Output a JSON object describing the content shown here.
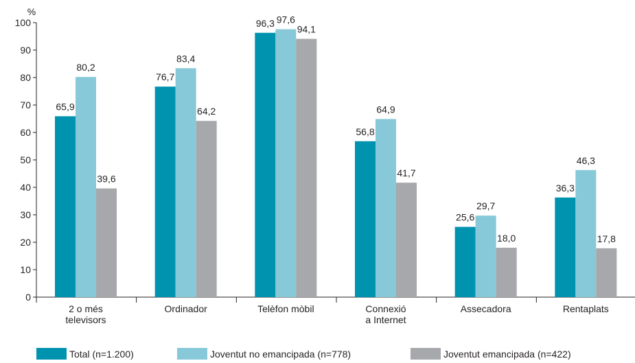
{
  "chart_data": {
    "type": "bar",
    "ylabel": "%",
    "ylim": [
      0,
      100
    ],
    "yticks": [
      0,
      10,
      20,
      30,
      40,
      50,
      60,
      70,
      80,
      90,
      100
    ],
    "categories": [
      [
        "2 o més",
        "televisors"
      ],
      [
        "Ordinador"
      ],
      [
        "Telèfon mòbil"
      ],
      [
        "Connexió",
        "a Internet"
      ],
      [
        "Assecadora"
      ],
      [
        "Rentaplats"
      ]
    ],
    "series": [
      {
        "name": "Total (n=1.200)",
        "color": "#0093b0",
        "values": [
          65.9,
          76.7,
          96.3,
          56.8,
          25.6,
          36.3
        ],
        "labels": [
          "65,9",
          "76,7",
          "96,3",
          "56,8",
          "25,6",
          "36,3"
        ]
      },
      {
        "name": "Joventut no emancipada (n=778)",
        "color": "#87c9d8",
        "values": [
          80.2,
          83.4,
          97.6,
          64.9,
          29.7,
          46.3
        ],
        "labels": [
          "80,2",
          "83,4",
          "97,6",
          "64,9",
          "29,7",
          "46,3"
        ]
      },
      {
        "name": "Joventut emancipada (n=422)",
        "color": "#a6a8ab",
        "values": [
          39.6,
          64.2,
          94.1,
          41.7,
          18.0,
          17.8
        ],
        "labels": [
          "39,6",
          "64,2",
          "94,1",
          "41,7",
          "18,0",
          "17,8"
        ]
      }
    ],
    "grid": false,
    "legend": "bottom"
  }
}
